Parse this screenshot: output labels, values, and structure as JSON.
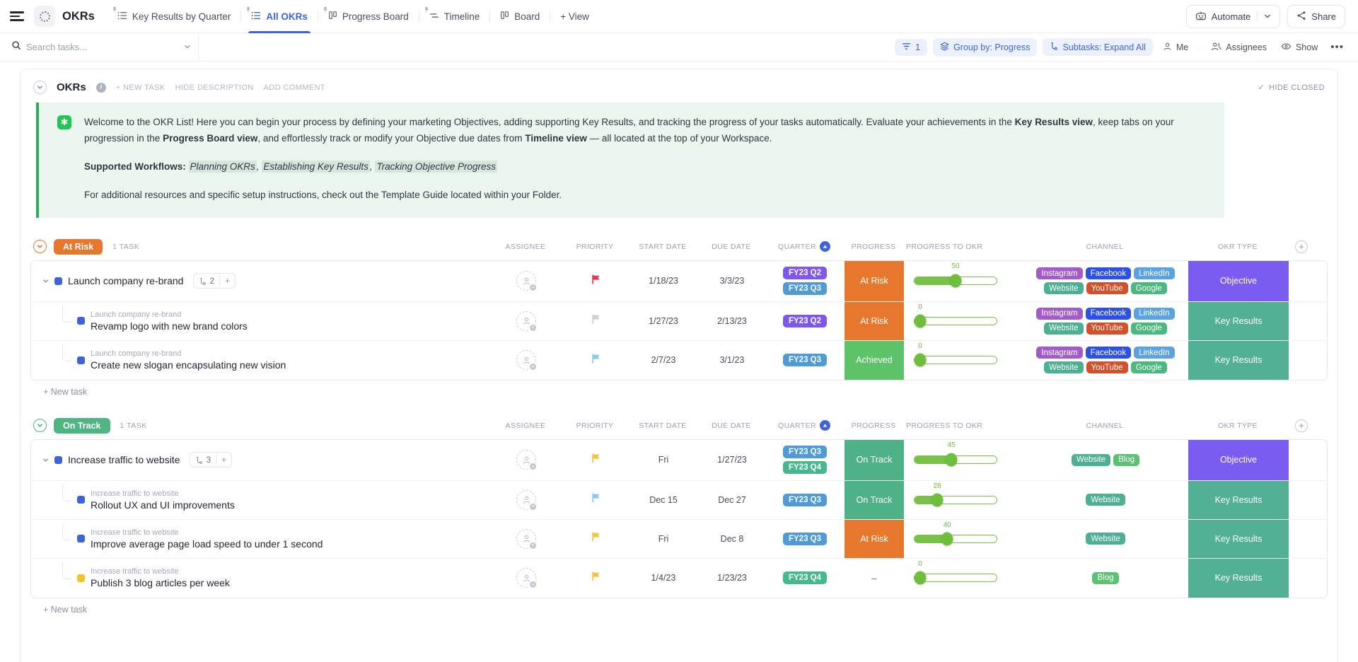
{
  "topbar": {
    "title": "OKRs",
    "tabs": [
      {
        "label": "Key Results by Quarter",
        "icon": "list",
        "active": false,
        "pinned": true
      },
      {
        "label": "All OKRs",
        "icon": "list",
        "active": true,
        "pinned": true
      },
      {
        "label": "Progress Board",
        "icon": "board",
        "active": false,
        "pinned": true
      },
      {
        "label": "Timeline",
        "icon": "timeline",
        "active": false,
        "pinned": true
      },
      {
        "label": "Board",
        "icon": "board",
        "active": false,
        "pinned": false
      },
      {
        "label": "+ View",
        "icon": "plus",
        "active": false,
        "pinned": false
      }
    ],
    "automate_label": "Automate",
    "share_label": "Share"
  },
  "toolbar": {
    "search_placeholder": "Search tasks...",
    "filter_count": "1",
    "group_by_label": "Group by: Progress",
    "subtasks_label": "Subtasks: Expand All",
    "me_label": "Me",
    "assignees_label": "Assignees",
    "show_label": "Show",
    "more_label": "•••"
  },
  "list_header": {
    "title": "OKRs",
    "actions": [
      "+ NEW TASK",
      "HIDE DESCRIPTION",
      "ADD COMMENT"
    ],
    "hide_closed_label": "HIDE CLOSED",
    "hide_closed_check": "✓"
  },
  "banner": {
    "icon_glyph": "✱",
    "paragraphs": [
      [
        {
          "t": "Welcome to the OKR List! Here you can begin your process by defining your marketing Objectives, adding supporting Key Results, and tracking the progress of your tasks automatically. Evaluate your achievements in the "
        },
        {
          "t": "Key Results view",
          "b": 1
        },
        {
          "t": ", keep tabs on your progression in the "
        },
        {
          "t": "Progress Board view",
          "b": 1
        },
        {
          "t": ", and effortlessly track or modify your Objective due dates from "
        },
        {
          "t": "Timeline view",
          "b": 1
        },
        {
          "t": " — all located at the top of your Workspace."
        }
      ],
      [
        {
          "t": "Supported Workflows: ",
          "b": 1
        },
        {
          "t": "Planning OKRs",
          "i": 1,
          "h": 1
        },
        {
          "t": ", ",
          "i": 1
        },
        {
          "t": "Establishing Key Results",
          "i": 1,
          "h": 1
        },
        {
          "t": ", ",
          "i": 1
        },
        {
          "t": "Tracking Objective Progress",
          "i": 1,
          "h": 1
        }
      ],
      [
        {
          "t": "For additional resources and specific setup instructions, check out the Template Guide located within your Folder."
        }
      ]
    ]
  },
  "columns": [
    "ASSIGNEE",
    "PRIORITY",
    "START DATE",
    "DUE DATE",
    "QUARTER",
    "PROGRESS",
    "PROGRESS TO OKR",
    "CHANNEL",
    "OKR TYPE"
  ],
  "colors": {
    "accent_blue": "#3E63DD",
    "flag": {
      "red": "#E8384F",
      "gray": "#C9D0D8",
      "lightblue": "#8EC9F0",
      "yellow": "#F7C43C"
    },
    "status_square": {
      "blue": "#3E63DD",
      "yellow": "#F3C32B"
    },
    "progress_status": {
      "At Risk": "#E8772E",
      "On Track": "#4FB286",
      "Achieved": "#5EC269"
    },
    "okr_type": {
      "Objective": "#7B5CF0",
      "Key Results": "#53B193"
    },
    "quarter": {
      "FY23 Q2": "#7E57F0",
      "FY23 Q3": "#4E9BD8",
      "FY23 Q4": "#46B98C"
    },
    "channel": {
      "Instagram": "#A35BC8",
      "Facebook": "#2B50E2",
      "LinkedIn": "#5BA3E0",
      "Website": "#4EB093",
      "YouTube": "#D4502A",
      "Google": "#4BB87F",
      "Blog": "#5DC173"
    },
    "group": {
      "At Risk": "#E8772E",
      "On Track": "#4EB583"
    }
  },
  "groups": [
    {
      "name": "At Risk",
      "task_count": "1 TASK",
      "rows": [
        {
          "type": "objective",
          "name": "Launch company re-brand",
          "subtask_count": "2",
          "status": "blue",
          "flag": "red",
          "start": "1/18/23",
          "due": "3/3/23",
          "quarters": [
            "FY23 Q2",
            "FY23 Q3"
          ],
          "progress": "At Risk",
          "slider": 50,
          "channels": [
            "Instagram",
            "Facebook",
            "LinkedIn",
            "Website",
            "YouTube",
            "Google"
          ],
          "okr": "Objective"
        },
        {
          "type": "sub",
          "parent": "Launch company re-brand",
          "name": "Revamp logo with new brand colors",
          "status": "blue",
          "flag": "gray",
          "start": "1/27/23",
          "due": "2/13/23",
          "quarters": [
            "FY23 Q2"
          ],
          "progress": "At Risk",
          "slider": 0,
          "channels": [
            "Instagram",
            "Facebook",
            "LinkedIn",
            "Website",
            "YouTube",
            "Google"
          ],
          "okr": "Key Results"
        },
        {
          "type": "sub",
          "parent": "Launch company re-brand",
          "name": "Create new slogan encapsulating new vision",
          "status": "blue",
          "flag": "lightblue",
          "start": "2/7/23",
          "due": "3/1/23",
          "quarters": [
            "FY23 Q3"
          ],
          "progress": "Achieved",
          "slider": 0,
          "channels": [
            "Instagram",
            "Facebook",
            "LinkedIn",
            "Website",
            "YouTube",
            "Google"
          ],
          "okr": "Key Results"
        }
      ],
      "footer": "+ New task"
    },
    {
      "name": "On Track",
      "task_count": "1 TASK",
      "rows": [
        {
          "type": "objective",
          "name": "Increase traffic to website",
          "subtask_count": "3",
          "status": "blue",
          "flag": "yellow",
          "start": "Fri",
          "due": "1/27/23",
          "quarters": [
            "FY23 Q3",
            "FY23 Q4"
          ],
          "progress": "On Track",
          "slider": 45,
          "channels": [
            "Website",
            "Blog"
          ],
          "okr": "Objective"
        },
        {
          "type": "sub",
          "parent": "Increase traffic to website",
          "name": "Rollout UX and UI improvements",
          "status": "blue",
          "flag": "lightblue",
          "start": "Dec 15",
          "due": "Dec 27",
          "quarters": [
            "FY23 Q3"
          ],
          "progress": "On Track",
          "slider": 28,
          "channels": [
            "Website"
          ],
          "okr": "Key Results"
        },
        {
          "type": "sub",
          "parent": "Increase traffic to website",
          "name": "Improve average page load speed to under 1 second",
          "status": "blue",
          "flag": "yellow",
          "start": "Fri",
          "due": "Dec 8",
          "quarters": [
            "FY23 Q3"
          ],
          "progress": "At Risk",
          "slider": 40,
          "channels": [
            "Website"
          ],
          "okr": "Key Results"
        },
        {
          "type": "sub",
          "parent": "Increase traffic to website",
          "name": "Publish 3 blog articles per week",
          "status": "yellow",
          "flag": "yellow",
          "start": "1/4/23",
          "due": "1/23/23",
          "quarters": [
            "FY23 Q4"
          ],
          "progress": "–",
          "slider": 0,
          "channels": [
            "Blog"
          ],
          "okr": "Key Results"
        }
      ],
      "footer": "+ New task"
    }
  ]
}
